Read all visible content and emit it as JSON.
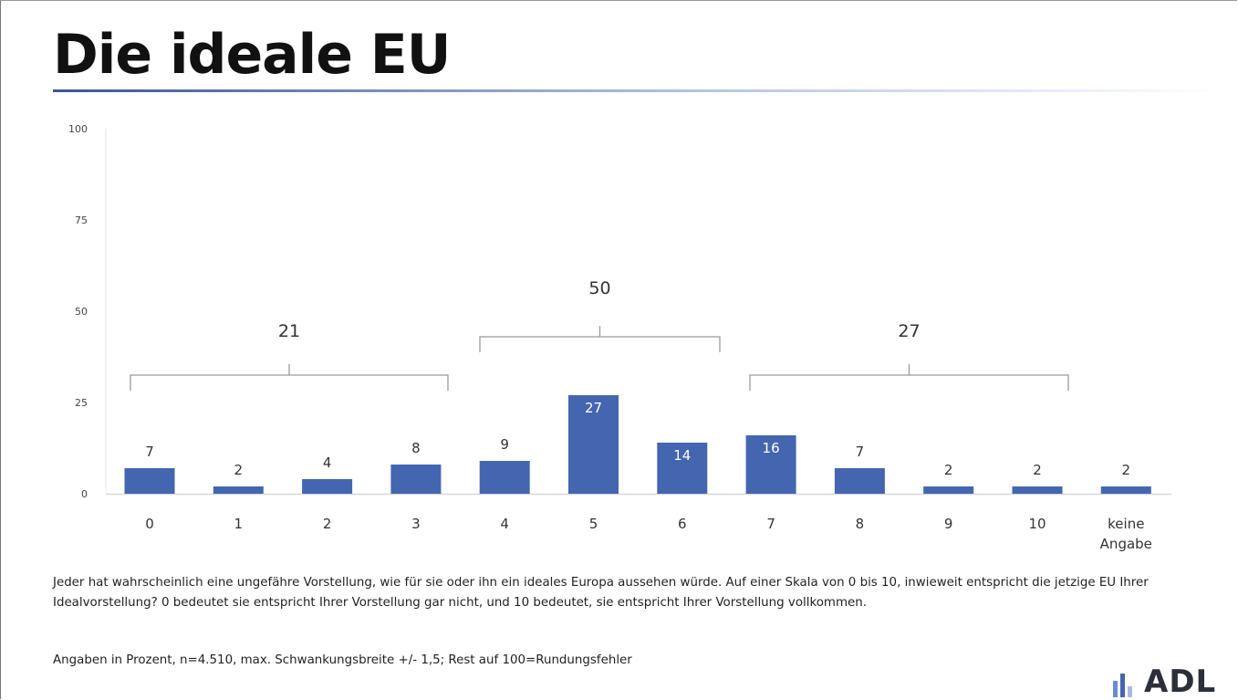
{
  "title": "Die ideale EU",
  "colors": {
    "bar": "#4466b0",
    "axis_text": "#444444",
    "bracket": "#9a9a9a",
    "label_dark": "#333333",
    "label_light": "#ffffff"
  },
  "chart_data": {
    "type": "bar",
    "title": "",
    "xlabel": "",
    "ylabel": "",
    "ylim": [
      0,
      100
    ],
    "yticks": [
      "0",
      "25",
      "50",
      "75",
      "100"
    ],
    "categories": [
      "0",
      "1",
      "2",
      "3",
      "4",
      "5",
      "6",
      "7",
      "8",
      "9",
      "10",
      "keine\nAngabe"
    ],
    "values": [
      7,
      2,
      4,
      8,
      9,
      27,
      14,
      16,
      7,
      2,
      2,
      2
    ],
    "grid": false,
    "groups": [
      {
        "label": "21",
        "from": "0",
        "to": "3"
      },
      {
        "label": "50",
        "from": "4",
        "to": "6"
      },
      {
        "label": "27",
        "from": "7",
        "to": "10"
      }
    ]
  },
  "footnote": {
    "question": "Jeder hat wahrscheinlich eine ungefähre Vorstellung, wie für sie oder ihn ein ideales Europa aussehen würde. Auf einer Skala von 0 bis 10, inwieweit entspricht die jetzige EU Ihrer Idealvorstellung? 0 bedeutet sie entspricht Ihrer Vorstellung gar nicht, und 10 bedeutet, sie entspricht Ihrer Vorstellung vollkommen.",
    "note": "Angaben in Prozent, n=4.510, max. Schwankungsbreite +/- 1,5; Rest auf 100=Rundungsfehler"
  },
  "logo": {
    "text": "ADL",
    "icon": "bar-chart-icon"
  }
}
